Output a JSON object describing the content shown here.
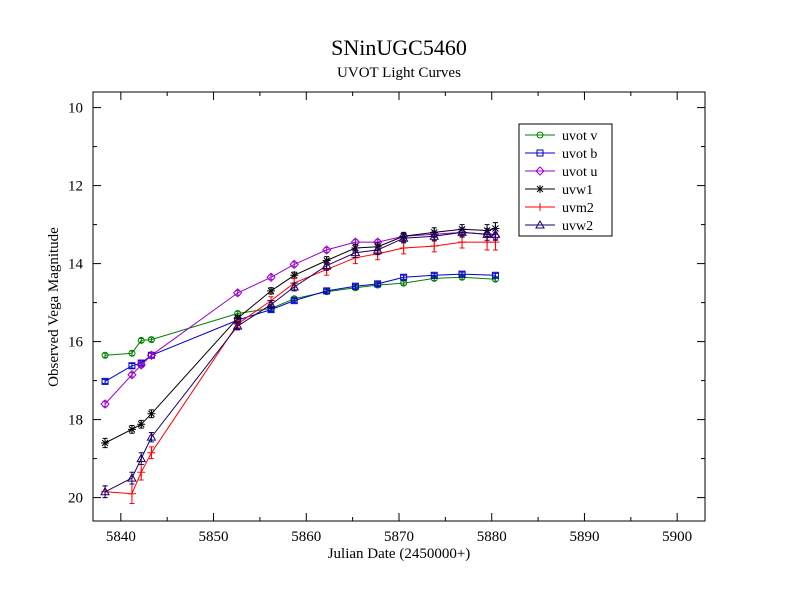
{
  "chart_data": {
    "type": "scatter",
    "title": "SNinUGC5460",
    "subtitle": "UVOT Light Curves",
    "xlabel": "Julian Date (2450000+)",
    "ylabel": "Observed Vega Magnitude",
    "xlim": [
      5837,
      5903
    ],
    "ylim": [
      20.6,
      9.6
    ],
    "y_inverted": true,
    "x_ticks": [
      5840,
      5850,
      5860,
      5870,
      5880,
      5890,
      5900
    ],
    "y_ticks": [
      10,
      12,
      14,
      16,
      18,
      20
    ],
    "grid": false,
    "legend_position": "top-right",
    "series": [
      {
        "name": "uvot v",
        "color": "#008000",
        "marker": "circle",
        "x": [
          5838.3,
          5841.2,
          5842.2,
          5843.3,
          5852.6,
          5856.2,
          5858.7,
          5862.2,
          5865.3,
          5867.7,
          5870.5,
          5873.8,
          5876.8,
          5880.4
        ],
        "y": [
          16.35,
          16.3,
          15.97,
          15.95,
          15.28,
          15.15,
          14.9,
          14.72,
          14.62,
          14.55,
          14.5,
          14.38,
          14.35,
          14.4
        ],
        "err": [
          0.05,
          0.06,
          0.05,
          0.05,
          0.05,
          0.05,
          0.05,
          0.05,
          0.05,
          0.05,
          0.05,
          0.05,
          0.05,
          0.05
        ]
      },
      {
        "name": "uvot b",
        "color": "#0000cc",
        "marker": "square",
        "x": [
          5838.3,
          5841.2,
          5842.2,
          5843.3,
          5852.6,
          5856.2,
          5858.7,
          5862.2,
          5865.3,
          5867.7,
          5870.5,
          5873.8,
          5876.8,
          5880.4
        ],
        "y": [
          17.02,
          16.62,
          16.55,
          16.35,
          15.45,
          15.18,
          14.95,
          14.7,
          14.58,
          14.52,
          14.35,
          14.3,
          14.27,
          14.3
        ],
        "err": [
          0.05,
          0.06,
          0.05,
          0.05,
          0.05,
          0.05,
          0.05,
          0.05,
          0.05,
          0.05,
          0.05,
          0.05,
          0.05,
          0.05
        ]
      },
      {
        "name": "uvot u",
        "color": "#9900cc",
        "marker": "diamond",
        "x": [
          5838.3,
          5841.2,
          5842.2,
          5843.3,
          5852.6,
          5856.2,
          5858.7,
          5862.2,
          5865.3,
          5867.7,
          5870.5,
          5873.8,
          5876.8,
          5879.5,
          5880.4
        ],
        "y": [
          17.6,
          16.85,
          16.6,
          16.35,
          14.75,
          14.35,
          14.02,
          13.65,
          13.45,
          13.45,
          13.3,
          13.25,
          13.2,
          13.25,
          13.3
        ],
        "err": [
          0.07,
          0.06,
          0.06,
          0.05,
          0.06,
          0.06,
          0.06,
          0.06,
          0.06,
          0.06,
          0.06,
          0.06,
          0.06,
          0.08,
          0.08
        ]
      },
      {
        "name": "uvw1",
        "color": "#000000",
        "marker": "star",
        "x": [
          5838.3,
          5841.2,
          5842.2,
          5843.3,
          5852.6,
          5856.2,
          5858.7,
          5862.2,
          5865.3,
          5867.7,
          5870.5,
          5873.8,
          5876.8,
          5879.5,
          5880.4
        ],
        "y": [
          18.6,
          18.25,
          18.12,
          17.85,
          15.4,
          14.7,
          14.3,
          13.92,
          13.6,
          13.57,
          13.3,
          13.2,
          13.12,
          13.15,
          13.1
        ],
        "err": [
          0.12,
          0.1,
          0.1,
          0.1,
          0.08,
          0.08,
          0.08,
          0.1,
          0.1,
          0.1,
          0.1,
          0.12,
          0.12,
          0.15,
          0.15
        ]
      },
      {
        "name": "uvm2",
        "color": "#ff0000",
        "marker": "plus",
        "x": [
          5838.3,
          5841.2,
          5842.2,
          5843.3,
          5852.6,
          5856.2,
          5858.7,
          5862.2,
          5865.3,
          5867.7,
          5870.5,
          5873.8,
          5876.8,
          5879.5,
          5880.4
        ],
        "y": [
          19.85,
          19.9,
          19.35,
          18.85,
          15.55,
          14.95,
          14.5,
          14.15,
          13.85,
          13.75,
          13.6,
          13.55,
          13.45,
          13.45,
          13.45
        ],
        "err": [
          0.15,
          0.25,
          0.2,
          0.15,
          0.1,
          0.1,
          0.12,
          0.15,
          0.15,
          0.15,
          0.15,
          0.15,
          0.15,
          0.2,
          0.2
        ]
      },
      {
        "name": "uvw2",
        "color": "#1a0066",
        "marker": "triangle",
        "x": [
          5838.3,
          5841.2,
          5842.2,
          5843.3,
          5852.6,
          5856.2,
          5858.7,
          5862.2,
          5865.3,
          5867.7,
          5870.5,
          5873.8,
          5876.8,
          5879.5,
          5880.4
        ],
        "y": [
          19.85,
          19.5,
          19.0,
          18.45,
          15.6,
          15.05,
          14.6,
          14.05,
          13.72,
          13.65,
          13.35,
          13.3,
          13.2,
          13.25,
          13.25
        ],
        "err": [
          0.15,
          0.15,
          0.15,
          0.12,
          0.1,
          0.1,
          0.1,
          0.12,
          0.12,
          0.12,
          0.12,
          0.12,
          0.12,
          0.15,
          0.15
        ]
      }
    ]
  }
}
